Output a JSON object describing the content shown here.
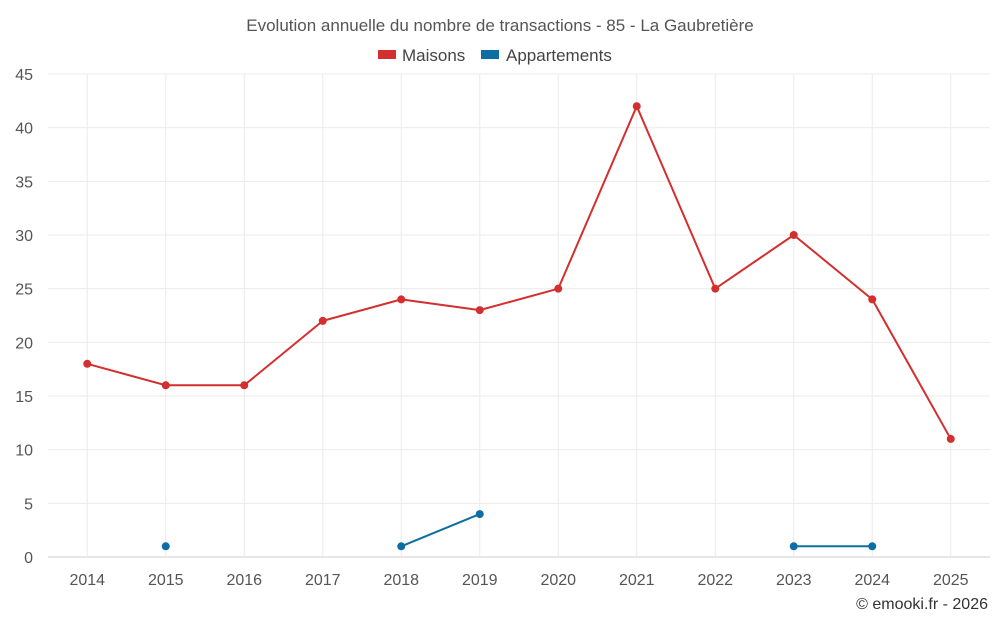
{
  "chart_data": {
    "type": "line",
    "title": "Evolution annuelle du nombre de transactions - 85 - La Gaubretière",
    "categories": [
      "2014",
      "2015",
      "2016",
      "2017",
      "2018",
      "2019",
      "2020",
      "2021",
      "2022",
      "2023",
      "2024",
      "2025"
    ],
    "series": [
      {
        "name": "Maisons",
        "color": "#d32f2f",
        "values": [
          18,
          16,
          16,
          22,
          24,
          23,
          25,
          42,
          25,
          30,
          24,
          11
        ]
      },
      {
        "name": "Appartements",
        "color": "#0d6ea3",
        "values": [
          null,
          1,
          null,
          null,
          1,
          4,
          null,
          null,
          null,
          1,
          1,
          null
        ]
      }
    ],
    "ylim": [
      0,
      45
    ],
    "yticks": [
      "0",
      "5",
      "10",
      "15",
      "20",
      "25",
      "30",
      "35",
      "40",
      "45"
    ],
    "xlabel": "",
    "ylabel": "",
    "grid": true,
    "legend_position": "top-center",
    "credit": "© emooki.fr - 2026"
  }
}
